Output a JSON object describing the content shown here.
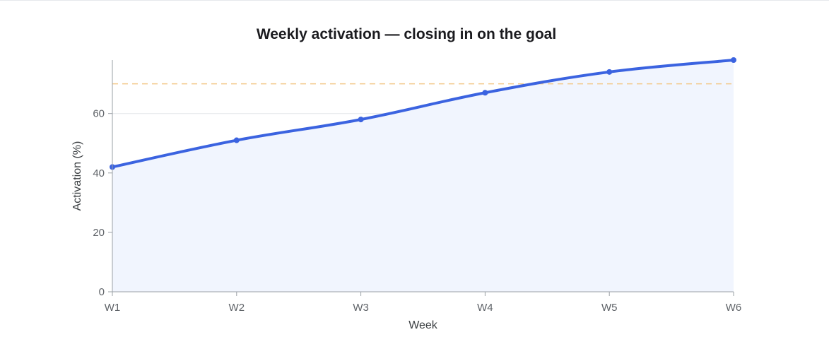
{
  "chart_data": {
    "type": "line",
    "title": "Weekly activation — closing in on the goal",
    "xlabel": "Week",
    "ylabel": "Activation (%)",
    "categories": [
      "W1",
      "W2",
      "W3",
      "W4",
      "W5",
      "W6"
    ],
    "series": [
      {
        "values": [
          42,
          51,
          58,
          67,
          74,
          78
        ],
        "color": "#3b63e0",
        "fill": "#f1f5fe"
      }
    ],
    "goal": {
      "value": 70,
      "color": "#f3c98a"
    },
    "ylim": [
      0,
      78
    ],
    "yticks": [
      0,
      20,
      40,
      60
    ],
    "grid": true,
    "area_fill": true,
    "smooth": true
  }
}
